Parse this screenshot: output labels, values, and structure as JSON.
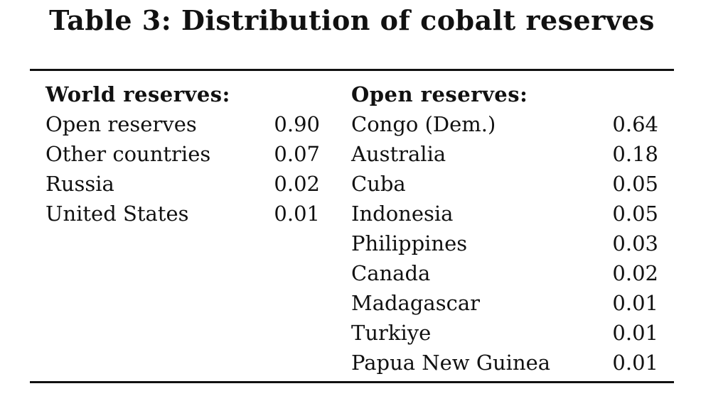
{
  "title": "Table 3: Distribution of cobalt reserves",
  "world": {
    "heading": "World reserves:",
    "rows": [
      {
        "name": "Open reserves",
        "value": "0.90"
      },
      {
        "name": "Other countries",
        "value": "0.07"
      },
      {
        "name": "Russia",
        "value": "0.02"
      },
      {
        "name": "United States",
        "value": "0.01"
      }
    ]
  },
  "open": {
    "heading": "Open reserves:",
    "rows": [
      {
        "name": "Congo (Dem.)",
        "value": "0.64"
      },
      {
        "name": "Australia",
        "value": "0.18"
      },
      {
        "name": "Cuba",
        "value": "0.05"
      },
      {
        "name": "Indonesia",
        "value": "0.05"
      },
      {
        "name": "Philippines",
        "value": "0.03"
      },
      {
        "name": "Canada",
        "value": "0.02"
      },
      {
        "name": "Madagascar",
        "value": "0.01"
      },
      {
        "name": "Turkiye",
        "value": "0.01"
      },
      {
        "name": "Papua New Guinea",
        "value": "0.01"
      }
    ]
  }
}
